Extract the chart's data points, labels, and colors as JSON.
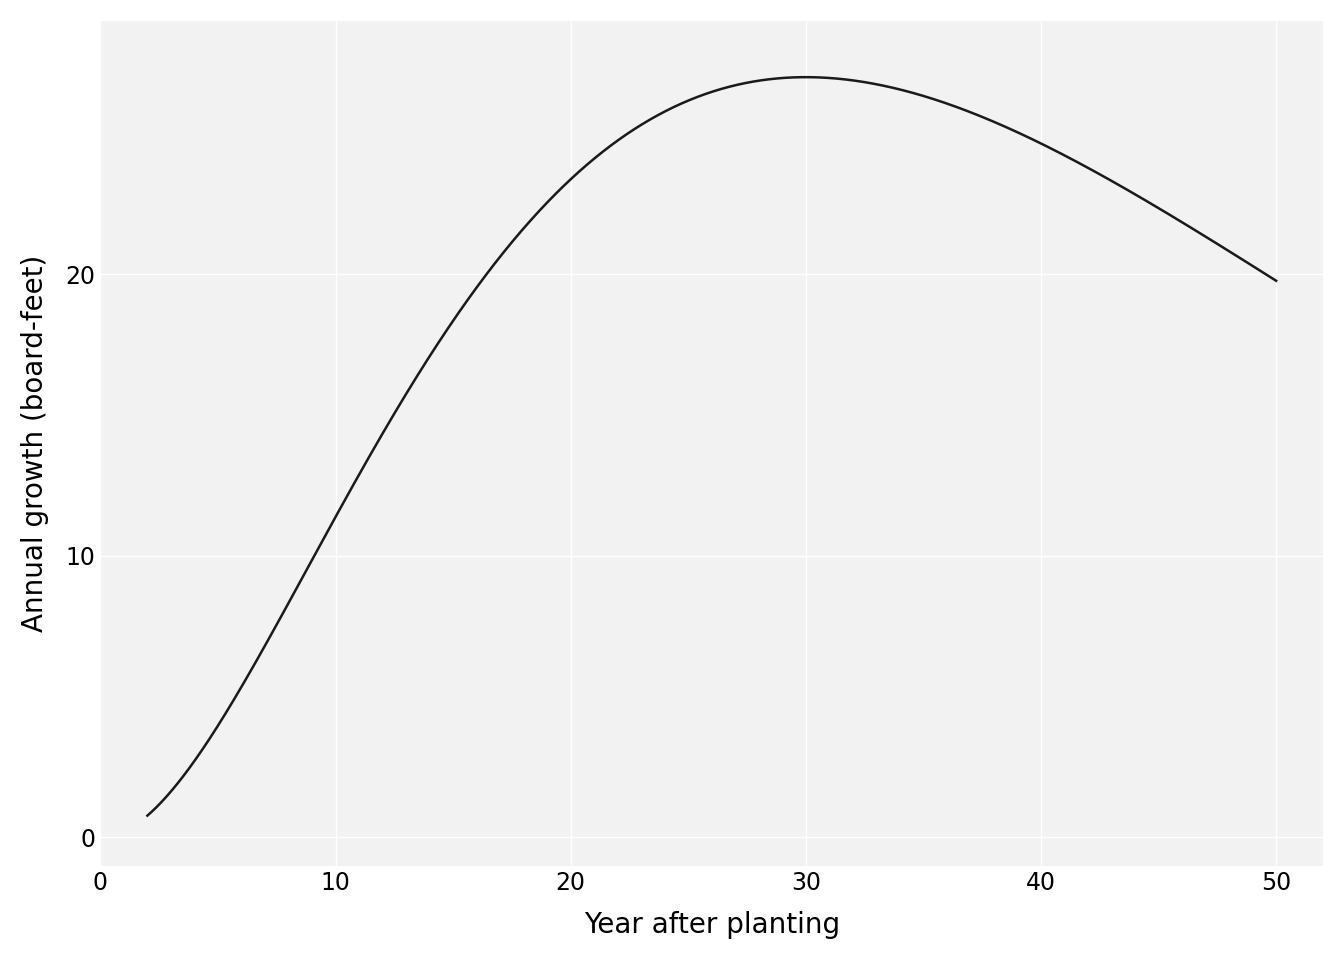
{
  "xlabel": "Year after planting",
  "ylabel": "Annual growth (board-feet)",
  "xlim": [
    0,
    52
  ],
  "ylim": [
    -1,
    29
  ],
  "xticks": [
    0,
    10,
    20,
    30,
    40,
    50
  ],
  "yticks": [
    0,
    10,
    20
  ],
  "background_color": "#ffffff",
  "panel_background": "#f2f2f2",
  "grid_color": "#ffffff",
  "line_color": "#1a1a1a",
  "line_width": 1.8,
  "xlabel_fontsize": 20,
  "ylabel_fontsize": 20,
  "tick_fontsize": 17,
  "B": 0.06667,
  "x_start": 2,
  "x_end": 50
}
